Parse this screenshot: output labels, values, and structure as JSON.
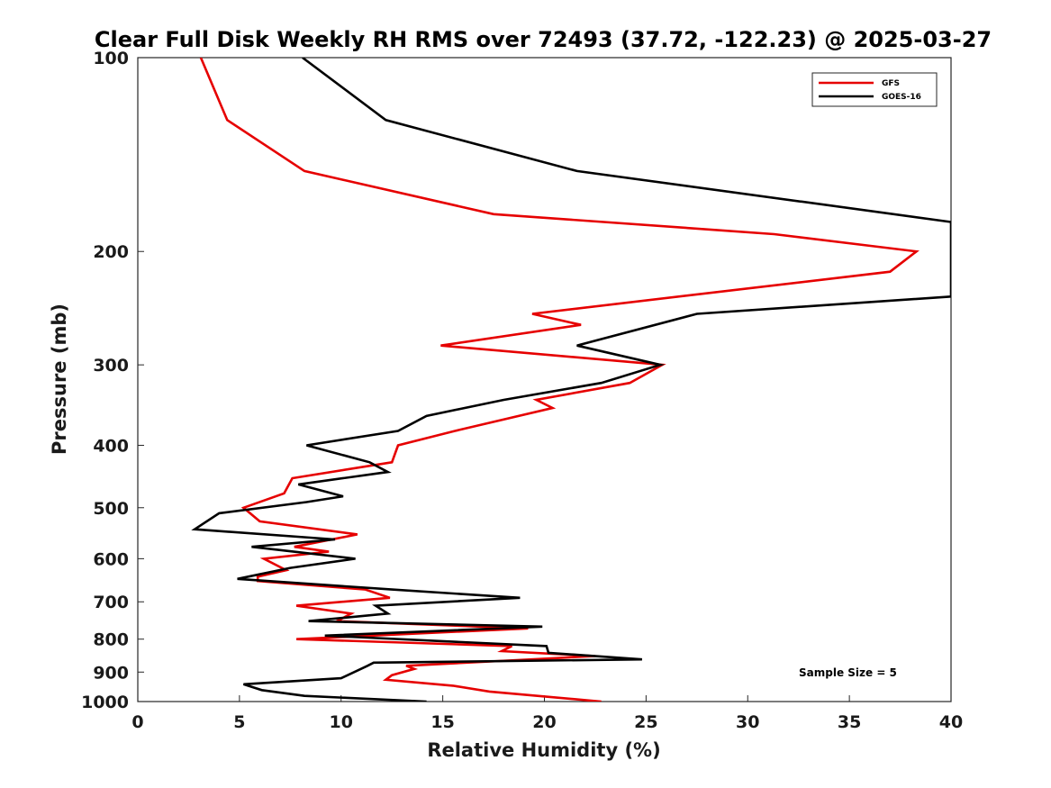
{
  "chart_data": {
    "type": "line",
    "title": "Clear Full Disk Weekly RH RMS over 72493 (37.72, -122.23) @ 2025-03-27",
    "xlabel": "Relative Humidity (%)",
    "ylabel": "Pressure (mb)",
    "xlim": [
      0,
      40
    ],
    "ylim": [
      1000,
      100
    ],
    "y_scale": "log",
    "y_reversed": true,
    "x_ticks": [
      0,
      5,
      10,
      15,
      20,
      25,
      30,
      35,
      40
    ],
    "x_tick_labels": [
      "0",
      "5",
      "10",
      "15",
      "20",
      "25",
      "30",
      "35",
      "40"
    ],
    "y_ticks": [
      100,
      200,
      300,
      400,
      500,
      600,
      700,
      800,
      900,
      1000
    ],
    "y_tick_labels": [
      "100",
      "200",
      "300",
      "400",
      "500",
      "600",
      "700",
      "800",
      "900",
      "1000"
    ],
    "grid": false,
    "legend_position": "top-right",
    "annotation": "Sample Size = 5",
    "series": [
      {
        "name": "GFS",
        "color": "#e60000",
        "points": [
          [
            3.1,
            100
          ],
          [
            4.4,
            125
          ],
          [
            8.2,
            150
          ],
          [
            17.5,
            175
          ],
          [
            31.3,
            188
          ],
          [
            38.3,
            200
          ],
          [
            37.0,
            215
          ],
          [
            19.4,
            250
          ],
          [
            21.8,
            260
          ],
          [
            14.9,
            280
          ],
          [
            25.8,
            300
          ],
          [
            24.2,
            320
          ],
          [
            19.6,
            340
          ],
          [
            20.4,
            350
          ],
          [
            15.6,
            380
          ],
          [
            12.8,
            400
          ],
          [
            12.5,
            425
          ],
          [
            7.6,
            450
          ],
          [
            7.2,
            475
          ],
          [
            5.2,
            500
          ],
          [
            6.0,
            525
          ],
          [
            10.8,
            550
          ],
          [
            7.7,
            575
          ],
          [
            9.4,
            585
          ],
          [
            6.2,
            600
          ],
          [
            7.3,
            625
          ],
          [
            5.9,
            640
          ],
          [
            5.9,
            650
          ],
          [
            11.2,
            670
          ],
          [
            12.4,
            690
          ],
          [
            7.8,
            710
          ],
          [
            10.5,
            730
          ],
          [
            9.8,
            750
          ],
          [
            19.2,
            770
          ],
          [
            7.8,
            800
          ],
          [
            18.4,
            820
          ],
          [
            17.9,
            835
          ],
          [
            22.5,
            850
          ],
          [
            13.2,
            880
          ],
          [
            13.6,
            890
          ],
          [
            12.5,
            910
          ],
          [
            12.2,
            925
          ],
          [
            15.5,
            945
          ],
          [
            17.3,
            965
          ],
          [
            22.8,
            1000
          ]
        ]
      },
      {
        "name": "GOES-16",
        "color": "#000000",
        "points": [
          [
            8.1,
            100
          ],
          [
            12.2,
            125
          ],
          [
            21.6,
            150
          ],
          [
            40,
            180
          ],
          [
            40,
            235
          ],
          [
            27.5,
            250
          ],
          [
            21.6,
            280
          ],
          [
            25.7,
            300
          ],
          [
            22.8,
            320
          ],
          [
            18.0,
            340
          ],
          [
            14.2,
            360
          ],
          [
            12.8,
            380
          ],
          [
            8.3,
            400
          ],
          [
            11.4,
            425
          ],
          [
            12.3,
            440
          ],
          [
            7.9,
            460
          ],
          [
            10.1,
            480
          ],
          [
            8.3,
            490
          ],
          [
            4.0,
            510
          ],
          [
            2.8,
            540
          ],
          [
            9.7,
            560
          ],
          [
            5.6,
            575
          ],
          [
            10.7,
            600
          ],
          [
            7.5,
            620
          ],
          [
            4.9,
            645
          ],
          [
            12.5,
            670
          ],
          [
            18.8,
            690
          ],
          [
            11.7,
            710
          ],
          [
            12.3,
            730
          ],
          [
            8.4,
            750
          ],
          [
            19.9,
            765
          ],
          [
            9.2,
            790
          ],
          [
            20.1,
            820
          ],
          [
            20.2,
            840
          ],
          [
            24.8,
            860
          ],
          [
            11.6,
            870
          ],
          [
            11.3,
            880
          ],
          [
            10.0,
            920
          ],
          [
            5.2,
            940
          ],
          [
            6.1,
            960
          ],
          [
            8.2,
            980
          ],
          [
            14.2,
            1000
          ]
        ]
      }
    ]
  }
}
